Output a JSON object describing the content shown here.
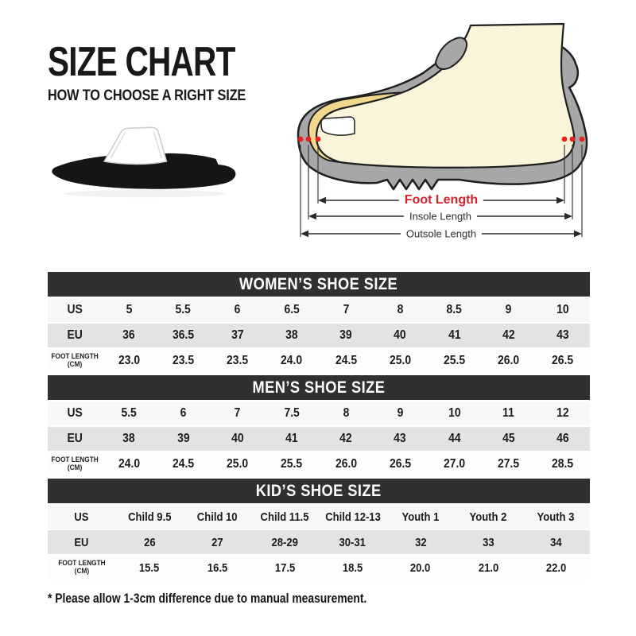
{
  "header": {
    "title": "SIZE CHART",
    "subtitle": "HOW TO CHOOSE A RIGHT SIZE"
  },
  "diagram": {
    "labels": {
      "foot_length": "Foot Length",
      "insole_length": "Insole Length",
      "outsole_length": "Outsole Length"
    },
    "colors": {
      "shoe_gray": "#a7a7a7",
      "foot_cream": "#faf4da",
      "insole_tan": "#f2d88b",
      "marker_red": "#e8211d",
      "outline": "#1f1f1f"
    }
  },
  "sandal": {
    "colors": {
      "sole_black": "#151515",
      "strap_white": "#ffffff"
    }
  },
  "colors": {
    "banner_bg": "#303030",
    "banner_text": "#ffffff",
    "row_us_bg": "#f7f7f5",
    "row_eu_bg": "#e3e3e2",
    "row_foot_bg": "#fdfdfc",
    "accent_red": "#d2232a",
    "text": "#1c1c1c"
  },
  "tables": [
    {
      "id": "womens",
      "title": "WOMEN’S SHOE SIZE",
      "rows": [
        {
          "label": "US",
          "values": [
            "5",
            "5.5",
            "6",
            "6.5",
            "7",
            "8",
            "8.5",
            "9",
            "10"
          ]
        },
        {
          "label": "EU",
          "values": [
            "36",
            "36.5",
            "37",
            "38",
            "39",
            "40",
            "41",
            "42",
            "43"
          ]
        },
        {
          "label": "FOOT LENGTH (CM)",
          "values": [
            "23.0",
            "23.5",
            "23.5",
            "24.0",
            "24.5",
            "25.0",
            "25.5",
            "26.0",
            "26.5"
          ]
        }
      ]
    },
    {
      "id": "mens",
      "title": "MEN’S SHOE SIZE",
      "rows": [
        {
          "label": "US",
          "values": [
            "5.5",
            "6",
            "7",
            "7.5",
            "8",
            "9",
            "10",
            "11",
            "12"
          ]
        },
        {
          "label": "EU",
          "values": [
            "38",
            "39",
            "40",
            "41",
            "42",
            "43",
            "44",
            "45",
            "46"
          ]
        },
        {
          "label": "FOOT LENGTH (CM)",
          "values": [
            "24.0",
            "24.5",
            "25.0",
            "25.5",
            "26.0",
            "26.5",
            "27.0",
            "27.5",
            "28.5"
          ]
        }
      ]
    },
    {
      "id": "kids",
      "title": "KID’S SHOE SIZE",
      "rows": [
        {
          "label": "US",
          "values": [
            "Child 9.5",
            "Child 10",
            "Child 11.5",
            "Child 12-13",
            "Youth 1",
            "Youth 2",
            "Youth 3"
          ]
        },
        {
          "label": "EU",
          "values": [
            "26",
            "27",
            "28-29",
            "30-31",
            "32",
            "33",
            "34"
          ]
        },
        {
          "label": "FOOT LENGTH (CM)",
          "values": [
            "15.5",
            "16.5",
            "17.5",
            "18.5",
            "20.0",
            "21.0",
            "22.0"
          ]
        }
      ]
    }
  ],
  "footnote": "* Please allow 1-3cm difference due to manual measurement."
}
